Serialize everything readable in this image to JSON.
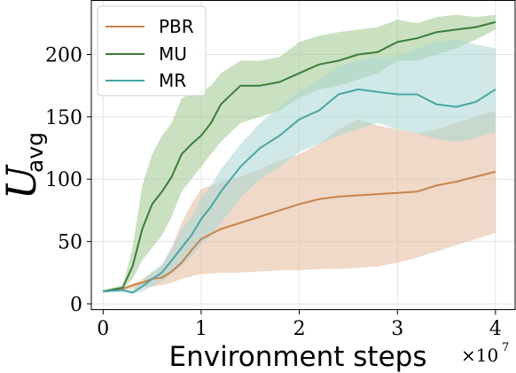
{
  "chart_data": {
    "type": "line",
    "title": "",
    "xlabel": "Environment steps",
    "ylabel": "U_avg",
    "ylabel_main": "U",
    "ylabel_sub": "avg",
    "x_multiplier_label": "×10",
    "x_multiplier_exponent": "7",
    "xlim": [
      -0.12,
      4.2
    ],
    "ylim": [
      -5,
      243
    ],
    "x_ticks": [
      0,
      1,
      2,
      3,
      4
    ],
    "x_tick_labels": [
      "0",
      "1",
      "2",
      "3",
      "4"
    ],
    "y_ticks": [
      0,
      50,
      100,
      150,
      200
    ],
    "y_tick_labels": [
      "0",
      "50",
      "100",
      "150",
      "200"
    ],
    "grid": true,
    "legend_position": "top-left",
    "series": [
      {
        "name": "PBR",
        "color": "#c8824a",
        "band_color": "#e3b99a",
        "x": [
          0,
          0.2,
          0.3,
          0.4,
          0.5,
          0.6,
          0.7,
          0.8,
          0.9,
          1.0,
          1.2,
          1.4,
          1.6,
          1.8,
          2.0,
          2.2,
          2.4,
          2.6,
          2.8,
          3.0,
          3.2,
          3.4,
          3.6,
          3.8,
          4.0
        ],
        "y": [
          10,
          12,
          15,
          17,
          20,
          21,
          26,
          33,
          43,
          52,
          60,
          65,
          70,
          75,
          80,
          84,
          86,
          87,
          88,
          89,
          90,
          95,
          98,
          102,
          106
        ],
        "lower": [
          10,
          11,
          12,
          13,
          14,
          15,
          17,
          20,
          22,
          24,
          25,
          25,
          26,
          27,
          27,
          28,
          28,
          29,
          30,
          33,
          37,
          42,
          47,
          52,
          57
        ],
        "upper": [
          11,
          13,
          16,
          20,
          25,
          30,
          45,
          65,
          80,
          92,
          98,
          102,
          108,
          115,
          120,
          128,
          140,
          148,
          143,
          140,
          137,
          140,
          145,
          150,
          155
        ]
      },
      {
        "name": "MU",
        "color": "#3b7d3a",
        "band_color": "#9ec98e",
        "x": [
          0,
          0.2,
          0.3,
          0.4,
          0.5,
          0.6,
          0.7,
          0.8,
          0.9,
          1.0,
          1.1,
          1.2,
          1.4,
          1.6,
          1.8,
          2.0,
          2.2,
          2.4,
          2.6,
          2.8,
          3.0,
          3.2,
          3.4,
          3.6,
          3.8,
          4.0
        ],
        "y": [
          10,
          13,
          30,
          60,
          80,
          90,
          102,
          120,
          128,
          135,
          145,
          160,
          175,
          175,
          178,
          185,
          192,
          195,
          200,
          202,
          210,
          213,
          218,
          220,
          222,
          226
        ],
        "lower": [
          9,
          12,
          20,
          35,
          45,
          55,
          70,
          90,
          100,
          110,
          120,
          130,
          145,
          150,
          155,
          165,
          172,
          175,
          180,
          185,
          195,
          195,
          200,
          205,
          212,
          220
        ],
        "upper": [
          11,
          15,
          45,
          95,
          120,
          135,
          145,
          165,
          168,
          170,
          175,
          185,
          195,
          195,
          198,
          210,
          215,
          218,
          220,
          222,
          228,
          225,
          230,
          232,
          230,
          232
        ]
      },
      {
        "name": "MR",
        "color": "#4aa6a6",
        "band_color": "#a9d7d6",
        "x": [
          0,
          0.2,
          0.3,
          0.4,
          0.5,
          0.6,
          0.7,
          0.8,
          0.9,
          1.0,
          1.1,
          1.2,
          1.4,
          1.6,
          1.8,
          2.0,
          2.2,
          2.4,
          2.6,
          2.8,
          3.0,
          3.2,
          3.4,
          3.6,
          3.8,
          4.0
        ],
        "y": [
          10,
          11,
          9,
          14,
          20,
          25,
          35,
          45,
          55,
          68,
          78,
          90,
          110,
          125,
          135,
          148,
          155,
          168,
          172,
          170,
          168,
          168,
          160,
          158,
          162,
          172
        ],
        "lower": [
          9,
          10,
          8,
          10,
          14,
          18,
          24,
          30,
          38,
          47,
          55,
          65,
          85,
          100,
          110,
          122,
          128,
          135,
          140,
          145,
          140,
          137,
          132,
          130,
          133,
          138
        ],
        "upper": [
          11,
          12,
          11,
          18,
          26,
          32,
          45,
          60,
          70,
          85,
          95,
          108,
          128,
          145,
          158,
          170,
          180,
          190,
          195,
          198,
          198,
          205,
          210,
          212,
          208,
          205
        ]
      }
    ]
  }
}
